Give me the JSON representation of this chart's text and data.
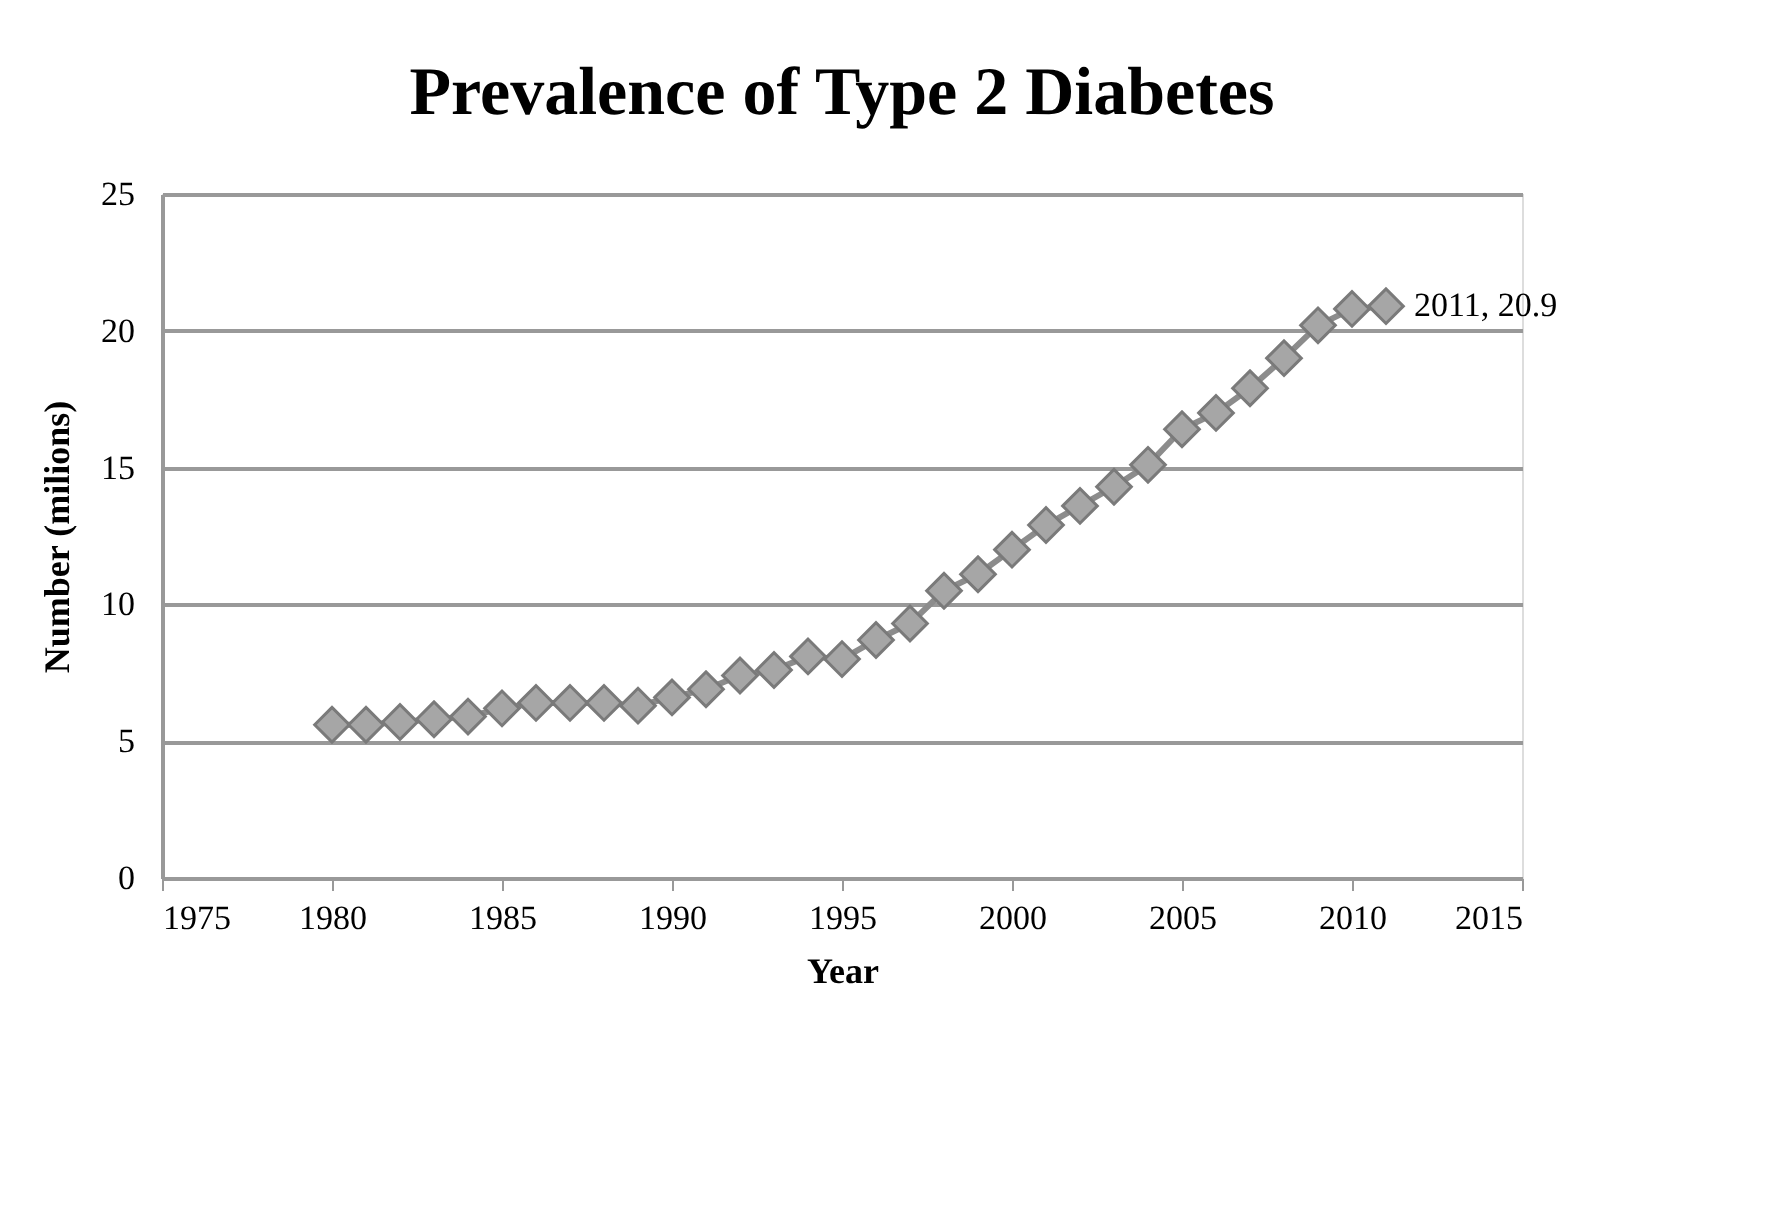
{
  "chart_data": {
    "type": "line",
    "title": "Prevalence of Type 2 Diabetes",
    "xlabel": "Year",
    "ylabel": "Number (milions)",
    "x": [
      1980,
      1981,
      1982,
      1983,
      1984,
      1985,
      1986,
      1987,
      1988,
      1989,
      1990,
      1991,
      1992,
      1993,
      1994,
      1995,
      1996,
      1997,
      1998,
      1999,
      2000,
      2001,
      2002,
      2003,
      2004,
      2005,
      2006,
      2007,
      2008,
      2009,
      2010,
      2011
    ],
    "series": [
      {
        "color": "#8c8c8c",
        "values": [
          5.6,
          5.6,
          5.7,
          5.8,
          5.9,
          6.2,
          6.4,
          6.4,
          6.4,
          6.3,
          6.6,
          6.9,
          7.4,
          7.6,
          8.1,
          8.0,
          8.7,
          9.3,
          10.5,
          11.1,
          12.0,
          12.9,
          13.6,
          14.3,
          15.1,
          16.4,
          17.0,
          17.9,
          19.0,
          20.2,
          20.8,
          20.9
        ],
        "value_labels": [
          null,
          null,
          null,
          null,
          null,
          null,
          null,
          null,
          null,
          null,
          null,
          null,
          null,
          null,
          null,
          null,
          null,
          null,
          null,
          null,
          null,
          null,
          null,
          null,
          null,
          null,
          null,
          null,
          null,
          null,
          null,
          "2011, 20.9"
        ]
      }
    ],
    "xlim": [
      1975,
      2015
    ],
    "xticks": [
      1975,
      1980,
      1985,
      1990,
      1995,
      2000,
      2005,
      2010,
      2015
    ],
    "ylim": [
      0,
      25
    ],
    "yticks": [
      0,
      5,
      10,
      15,
      20,
      25
    ],
    "grid": "y",
    "marker": "diamond",
    "line_style": "solid"
  }
}
